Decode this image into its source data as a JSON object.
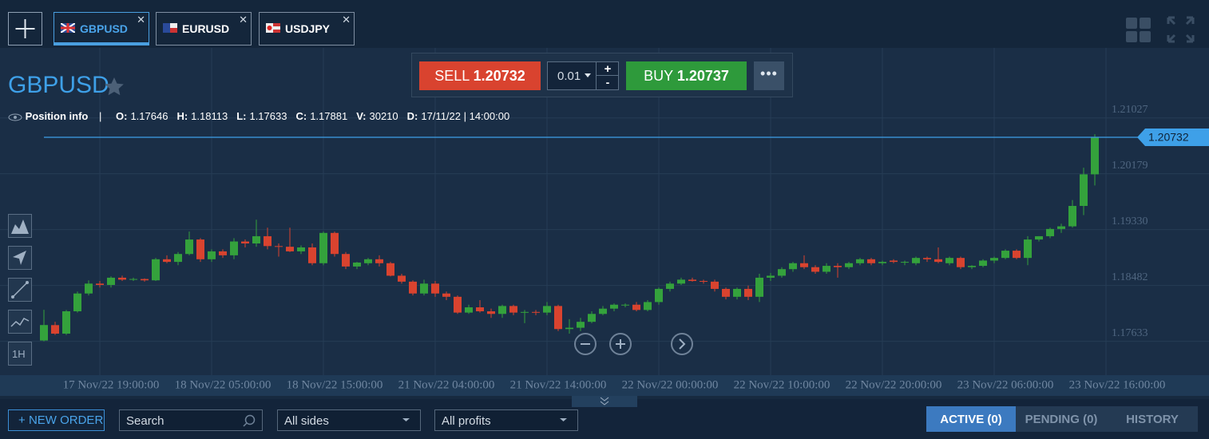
{
  "tabs": [
    "GBPUSD",
    "EURUSD",
    "USDJPY"
  ],
  "trade": {
    "sell_label": "SELL",
    "sell_price": "1.20732",
    "amount": "0.01",
    "increase": "+",
    "decrease": "-",
    "buy_label": "BUY",
    "buy_price": "1.20737"
  },
  "symbol": "GBPUSD",
  "info": {
    "title": "Position info",
    "separator": "|",
    "fields": [
      {
        "label": "O:",
        "value": "1.17646"
      },
      {
        "label": "H:",
        "value": "1.18113"
      },
      {
        "label": "L:",
        "value": "1.17633"
      },
      {
        "label": "C:",
        "value": "1.17881"
      },
      {
        "label": "V:",
        "value": "30210"
      },
      {
        "label": "D:",
        "value": "17/11/22 | 14:00:00"
      }
    ]
  },
  "chart_data": {
    "type": "candlestick",
    "timeframe": "1H",
    "up_color": "#34a23c",
    "down_color": "#d9432f",
    "grid": true,
    "ylim": [
      1.1712,
      1.2209
    ],
    "yticks": [
      1.17633,
      1.18482,
      {
        "value": 1.1933,
        "label": "1.19330"
      },
      1.20179,
      1.21027
    ],
    "current_price": 1.20732,
    "x_labels": [
      "17 Nov/22 19:00:00",
      "18 Nov/22 05:00:00",
      "18 Nov/22 15:00:00",
      "21 Nov/22 04:00:00",
      "21 Nov/22 14:00:00",
      "22 Nov/22 00:00:00",
      "22 Nov/22 10:00:00",
      "22 Nov/22 20:00:00",
      "23 Nov/22 06:00:00",
      "23 Nov/22 16:00:00"
    ],
    "open": [
      1.17646,
      1.1788,
      1.1775,
      1.1809,
      1.1836,
      1.1851,
      1.1849,
      1.186,
      1.1857,
      1.1858,
      1.1856,
      1.1888,
      1.1884,
      1.1896,
      1.1918,
      1.1888,
      1.19,
      1.1894,
      1.1915,
      1.1912,
      1.1923,
      1.1908,
      1.1907,
      1.19,
      1.1906,
      1.1882,
      1.1928,
      1.1896,
      1.1877,
      1.1882,
      1.1888,
      1.1882,
      1.1863,
      1.1854,
      1.1836,
      1.1851,
      1.1836,
      1.1831,
      1.1807,
      1.1815,
      1.1809,
      1.1805,
      1.1817,
      1.1807,
      1.1808,
      1.1807,
      1.1817,
      1.1782,
      1.1784,
      1.1793,
      1.1805,
      1.1813,
      1.1819,
      1.1819,
      1.1811,
      1.1823,
      1.1843,
      1.1851,
      1.1857,
      1.1855,
      1.1854,
      1.1843,
      1.1831,
      1.1843,
      1.1831,
      1.186,
      1.1863,
      1.1873,
      1.1882,
      1.1876,
      1.1869,
      1.1878,
      1.1876,
      1.1882,
      1.1888,
      1.1882,
      1.1886,
      1.1884,
      1.1882,
      1.189,
      1.1888,
      1.1882,
      1.189,
      1.1876,
      1.1878,
      1.1886,
      1.189,
      1.1901,
      1.189,
      1.1918,
      1.1923,
      1.1934,
      1.1938,
      1.1969,
      1.2017
    ],
    "high": [
      1.18113,
      1.1793,
      1.1811,
      1.1839,
      1.1856,
      1.1855,
      1.1862,
      1.1863,
      1.186,
      1.1859,
      1.189,
      1.1894,
      1.1899,
      1.193,
      1.192,
      1.1903,
      1.1903,
      1.192,
      1.1918,
      1.1948,
      1.1936,
      1.1912,
      1.1936,
      1.1909,
      1.1912,
      1.193,
      1.193,
      1.1899,
      1.1884,
      1.189,
      1.1894,
      1.1884,
      1.1866,
      1.1856,
      1.1857,
      1.1855,
      1.1839,
      1.1833,
      1.1819,
      1.1826,
      1.1813,
      1.1819,
      1.1819,
      1.1811,
      1.1811,
      1.1823,
      1.1819,
      1.1797,
      1.1799,
      1.1809,
      1.1817,
      1.1821,
      1.1821,
      1.1823,
      1.1826,
      1.1845,
      1.1854,
      1.186,
      1.186,
      1.1857,
      1.1857,
      1.1845,
      1.1845,
      1.1848,
      1.1866,
      1.1867,
      1.1876,
      1.1884,
      1.1894,
      1.1879,
      1.1882,
      1.1882,
      1.1884,
      1.189,
      1.189,
      1.1886,
      1.1888,
      1.1886,
      1.1892,
      1.1892,
      1.1906,
      1.1892,
      1.1892,
      1.1879,
      1.1888,
      1.1892,
      1.1903,
      1.1903,
      1.1923,
      1.1923,
      1.1936,
      1.1942,
      1.1978,
      1.2027,
      1.2078
    ],
    "low": [
      1.17633,
      1.1773,
      1.1773,
      1.1807,
      1.1833,
      1.1845,
      1.1845,
      1.1855,
      1.1855,
      1.1854,
      1.1855,
      1.1882,
      1.1879,
      1.1894,
      1.1884,
      1.1884,
      1.189,
      1.1888,
      1.1906,
      1.1907,
      1.1903,
      1.1892,
      1.1899,
      1.1896,
      1.1879,
      1.1879,
      1.1892,
      1.1873,
      1.1873,
      1.1879,
      1.1877,
      1.1862,
      1.1851,
      1.1833,
      1.1833,
      1.1831,
      1.1826,
      1.1805,
      1.1805,
      1.1807,
      1.1799,
      1.1799,
      1.1803,
      1.1791,
      1.1803,
      1.1803,
      1.1779,
      1.1775,
      1.1779,
      1.1791,
      1.1803,
      1.1809,
      1.1815,
      1.1809,
      1.1809,
      1.1819,
      1.1839,
      1.1849,
      1.1854,
      1.1851,
      1.1839,
      1.1827,
      1.1827,
      1.1826,
      1.1823,
      1.1855,
      1.186,
      1.1869,
      1.1873,
      1.1866,
      1.1866,
      1.186,
      1.1873,
      1.1879,
      1.1879,
      1.1879,
      1.1882,
      1.1879,
      1.1879,
      1.1884,
      1.1882,
      1.1879,
      1.1873,
      1.1873,
      1.1876,
      1.1882,
      1.1888,
      1.1888,
      1.1879,
      1.1915,
      1.192,
      1.1928,
      1.1936,
      1.1955,
      1.2
    ],
    "close": [
      1.17881,
      1.1775,
      1.1809,
      1.1836,
      1.1851,
      1.1849,
      1.186,
      1.1857,
      1.1858,
      1.1856,
      1.1888,
      1.1884,
      1.1896,
      1.1918,
      1.1888,
      1.19,
      1.1894,
      1.1915,
      1.1912,
      1.1923,
      1.1908,
      1.1907,
      1.19,
      1.1906,
      1.1882,
      1.1928,
      1.1896,
      1.1877,
      1.1883,
      1.1888,
      1.1882,
      1.1863,
      1.1854,
      1.1836,
      1.1851,
      1.1836,
      1.1831,
      1.1807,
      1.1815,
      1.1809,
      1.1805,
      1.1817,
      1.1807,
      1.1808,
      1.1807,
      1.1817,
      1.1782,
      1.1784,
      1.1793,
      1.1805,
      1.1813,
      1.1819,
      1.1819,
      1.1811,
      1.1823,
      1.1843,
      1.1851,
      1.1857,
      1.1855,
      1.1854,
      1.1843,
      1.1831,
      1.1843,
      1.1831,
      1.186,
      1.1863,
      1.1873,
      1.1882,
      1.1876,
      1.1869,
      1.1878,
      1.1876,
      1.1882,
      1.1888,
      1.1882,
      1.1884,
      1.1884,
      1.1884,
      1.189,
      1.1888,
      1.1884,
      1.189,
      1.1876,
      1.1878,
      1.1886,
      1.189,
      1.1901,
      1.189,
      1.1918,
      1.1923,
      1.1934,
      1.1938,
      1.1969,
      1.2017,
      1.2073
    ]
  },
  "orders": {
    "new_order": "NEW ORDER",
    "search": "Search",
    "sides": "All sides",
    "profits": "All profits",
    "tabs": [
      "ACTIVE (0)",
      "PENDING (0)",
      "HISTORY"
    ]
  }
}
